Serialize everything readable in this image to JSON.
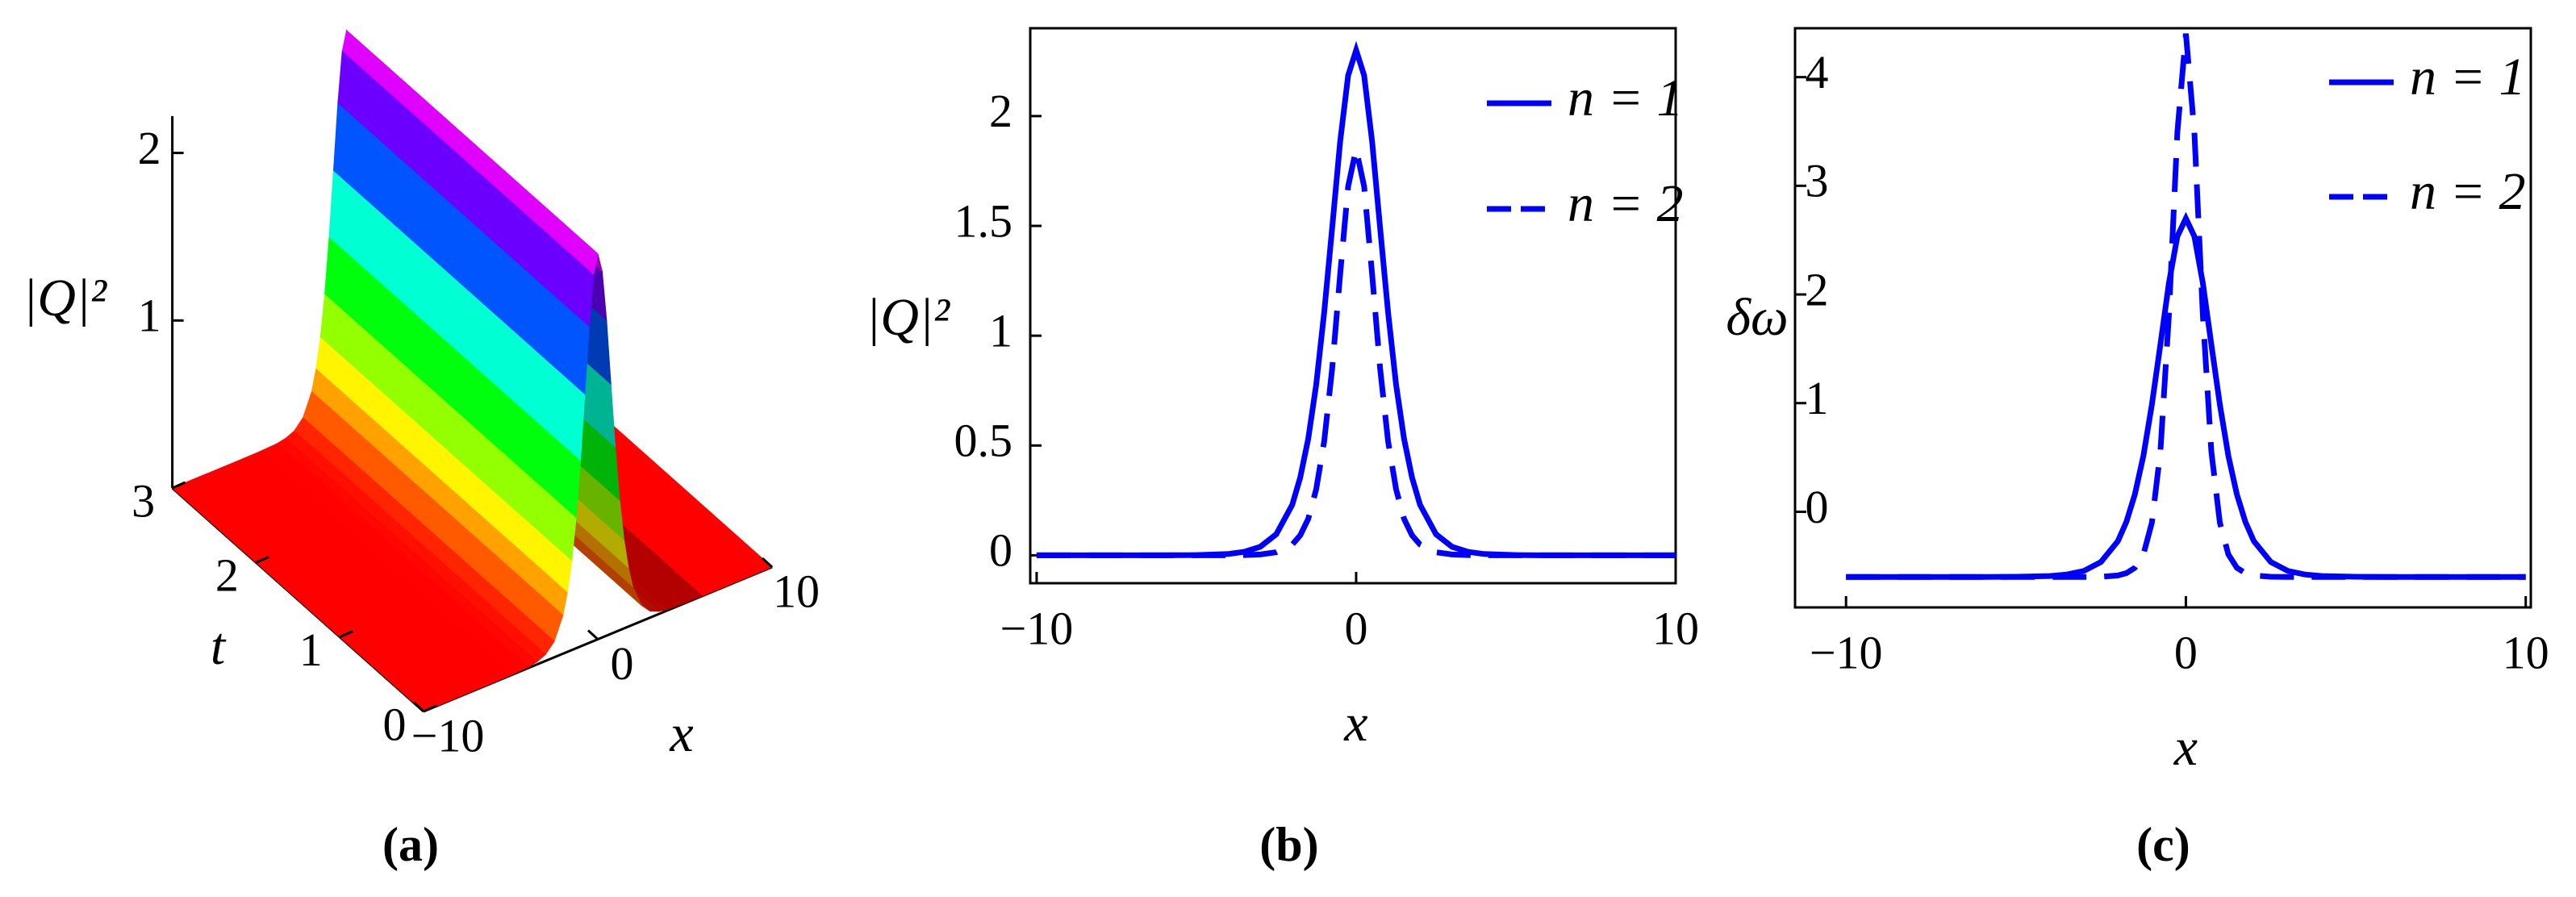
{
  "chart_data": [
    {
      "type": "surface",
      "caption": "(a)",
      "xlabel": "x",
      "ylabel": "t",
      "zlabel": "|Q|²",
      "x": [
        -10,
        -8,
        -6,
        -5,
        -4,
        -3.5,
        -3,
        -2.5,
        -2,
        -1.75,
        -1.5,
        -1.25,
        -1,
        -0.75,
        -0.5,
        -0.25,
        0,
        0.25,
        0.5,
        0.75,
        1,
        1.25,
        1.5,
        1.75,
        2,
        2.5,
        3,
        3.5,
        4,
        5,
        6,
        8,
        10
      ],
      "values": [
        0,
        0,
        0,
        0.001,
        0.006,
        0.016,
        0.039,
        0.096,
        0.23,
        0.354,
        0.53,
        0.777,
        1.106,
        1.491,
        1.884,
        2.185,
        2.3,
        2.185,
        1.884,
        1.491,
        1.106,
        0.777,
        0.53,
        0.354,
        0.23,
        0.096,
        0.039,
        0.016,
        0.006,
        0.001,
        0,
        0,
        0
      ],
      "xlim": [
        -10,
        10
      ],
      "ylim": [
        0,
        3
      ],
      "zlim": [
        0,
        2.22
      ],
      "xticks": [
        {
          "value": -10,
          "label": "−10"
        },
        0,
        10
      ],
      "yticks": [
        0,
        1,
        2,
        3
      ],
      "zticks": [
        1,
        2
      ]
    },
    {
      "type": "line",
      "caption": "(b)",
      "xlabel": "x",
      "ylabel": "|Q|²",
      "x": [
        -10,
        -8,
        -6,
        -5,
        -4,
        -3.5,
        -3,
        -2.5,
        -2,
        -1.75,
        -1.5,
        -1.25,
        -1,
        -0.75,
        -0.5,
        -0.25,
        0,
        0.25,
        0.5,
        0.75,
        1,
        1.25,
        1.5,
        1.75,
        2,
        2.5,
        3,
        3.5,
        4,
        5,
        6,
        8,
        10
      ],
      "series": [
        {
          "name": "n = 1",
          "color": "#0000ff",
          "dash": "solid",
          "values": [
            0,
            0,
            0,
            0.001,
            0.006,
            0.016,
            0.039,
            0.096,
            0.23,
            0.354,
            0.53,
            0.777,
            1.106,
            1.491,
            1.884,
            2.185,
            2.3,
            2.185,
            1.884,
            1.491,
            1.106,
            0.777,
            0.53,
            0.354,
            0.23,
            0.096,
            0.039,
            0.016,
            0.006,
            0.001,
            0,
            0,
            0
          ]
        },
        {
          "name": "n = 2",
          "color": "#0000ff",
          "dash": "dashed",
          "values": [
            0,
            0,
            0,
            0,
            0,
            0.001,
            0.004,
            0.014,
            0.049,
            0.091,
            0.166,
            0.301,
            0.519,
            0.851,
            1.28,
            1.68,
            1.85,
            1.68,
            1.28,
            0.851,
            0.519,
            0.301,
            0.166,
            0.091,
            0.049,
            0.014,
            0.004,
            0.001,
            0,
            0,
            0,
            0,
            0
          ]
        }
      ],
      "xlim": [
        -10.2,
        10
      ],
      "ylim": [
        -0.127,
        2.4
      ],
      "xticks": [
        {
          "value": -10,
          "label": "−10"
        },
        0,
        10
      ],
      "yticks": [
        0,
        0.5,
        1,
        1.5,
        2
      ]
    },
    {
      "type": "line",
      "caption": "(c)",
      "xlabel": "x",
      "ylabel": "δω",
      "x": [
        -10,
        -8,
        -6,
        -5,
        -4,
        -3.5,
        -3,
        -2.5,
        -2,
        -1.75,
        -1.5,
        -1.25,
        -1,
        -0.75,
        -0.5,
        -0.25,
        0,
        0.25,
        0.5,
        0.75,
        1,
        1.25,
        1.5,
        1.75,
        2,
        2.5,
        3,
        3.5,
        4,
        5,
        6,
        8,
        10
      ],
      "series": [
        {
          "name": "n = 1",
          "color": "#0000ff",
          "dash": "solid",
          "values": [
            -0.6,
            -0.6,
            -0.6,
            -0.598,
            -0.591,
            -0.577,
            -0.544,
            -0.462,
            -0.27,
            -0.092,
            0.161,
            0.515,
            0.987,
            1.538,
            2.103,
            2.535,
            2.7,
            2.535,
            2.103,
            1.538,
            0.987,
            0.515,
            0.161,
            -0.092,
            -0.27,
            -0.462,
            -0.544,
            -0.577,
            -0.591,
            -0.598,
            -0.6,
            -0.6,
            -0.6
          ]
        },
        {
          "name": "n = 2",
          "color": "#0000ff",
          "dash": "dashed",
          "values": [
            -0.6,
            -0.6,
            -0.6,
            -0.6,
            -0.6,
            -0.6,
            -0.6,
            -0.598,
            -0.586,
            -0.565,
            -0.515,
            -0.392,
            -0.1,
            0.553,
            1.805,
            3.495,
            4.4,
            3.495,
            1.805,
            0.553,
            -0.1,
            -0.392,
            -0.515,
            -0.565,
            -0.586,
            -0.598,
            -0.6,
            -0.6,
            -0.6,
            -0.6,
            -0.6,
            -0.6,
            -0.6
          ]
        }
      ],
      "xlim": [
        -11.5,
        10.15
      ],
      "ylim": [
        -0.88,
        4.45
      ],
      "xticks": [
        {
          "value": -10,
          "label": "−10"
        },
        0,
        10
      ],
      "yticks": [
        0,
        1,
        2,
        3,
        4
      ]
    }
  ]
}
